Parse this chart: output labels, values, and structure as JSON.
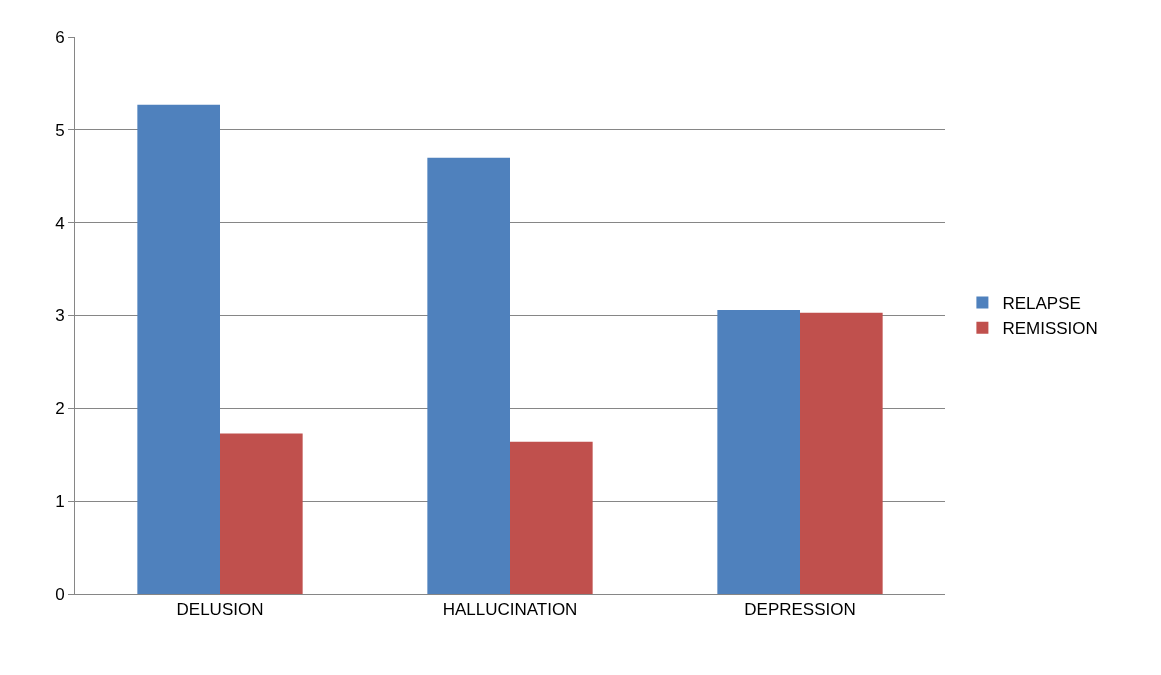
{
  "chart_data": {
    "type": "bar",
    "categories": [
      "DELUSION",
      "HALLUCINATION",
      "DEPRESSION"
    ],
    "series": [
      {
        "name": "RELAPSE",
        "color": "#4f81bd",
        "values": [
          5.27,
          4.7,
          3.06
        ]
      },
      {
        "name": "REMISSION",
        "color": "#c0504d",
        "values": [
          1.73,
          1.64,
          3.03
        ]
      }
    ],
    "ylim": [
      0,
      6
    ],
    "yticks": [
      0,
      1,
      2,
      3,
      4,
      5,
      6
    ],
    "grid": "y",
    "legend": "right"
  }
}
